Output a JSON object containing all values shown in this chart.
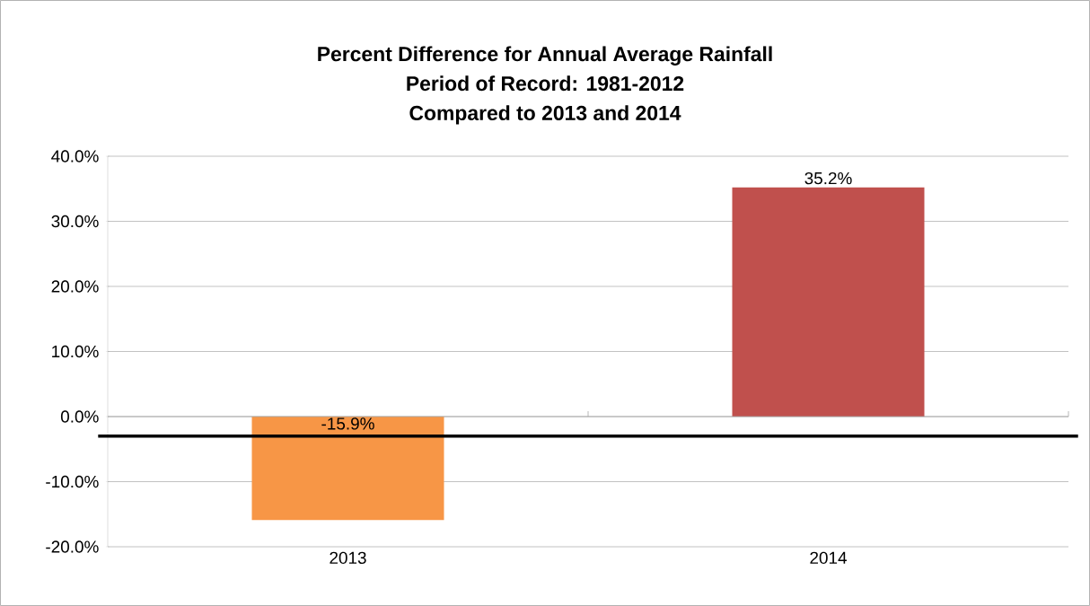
{
  "chart_data": {
    "type": "bar",
    "title": "Percent Difference for Annual Average Rainfall\nPeriod of Record: 1981-2012\nCompared to 2013 and 2014",
    "categories": [
      "2013",
      "2014"
    ],
    "values": [
      -15.9,
      35.2
    ],
    "colors": [
      "#f79646",
      "#c0504d"
    ],
    "value_labels": [
      "-15.9%",
      "35.2%"
    ],
    "ylim": [
      -20,
      40
    ],
    "yticks": [
      {
        "value": -20,
        "label": "-20.0%"
      },
      {
        "value": -10,
        "label": "-10.0%"
      },
      {
        "value": 0,
        "label": "0.0%"
      },
      {
        "value": 10,
        "label": "10.0%"
      },
      {
        "value": 20,
        "label": "20.0%"
      },
      {
        "value": 30,
        "label": "30.0%"
      },
      {
        "value": 40,
        "label": "40.0%"
      }
    ],
    "grid": "y",
    "ref_lines": [
      {
        "axis": "y",
        "value": -3,
        "color": "#000000"
      }
    ]
  }
}
